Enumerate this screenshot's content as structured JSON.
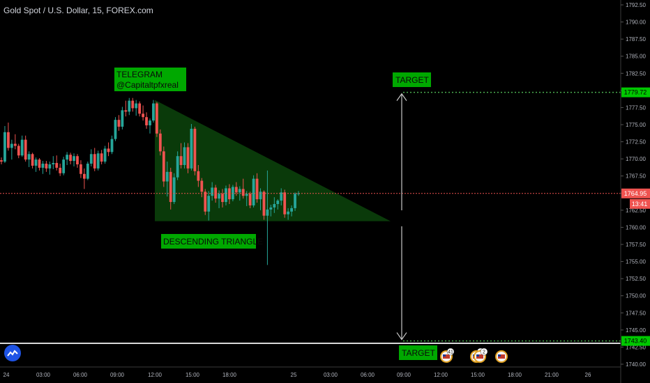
{
  "header": {
    "title": "Gold Spot / U.S. Dollar, 15, FOREX.com"
  },
  "annotations": {
    "telegram_line1": "TELEGRAM",
    "telegram_line2": "@Capitaltpfxreal",
    "pattern_label": "DESCENDING TRIANGLE",
    "target_upper": "TARGET",
    "target_lower": "TARGET"
  },
  "price_tags": {
    "target_upper": "1779.72",
    "current": "1764.95",
    "countdown": "13:41",
    "target_lower": "1743.40"
  },
  "events": [
    {
      "count": "41",
      "flag": "us-flag-icon"
    },
    {
      "count": "2",
      "flag": "us-flag-icon"
    },
    {
      "count": "2",
      "flag": "us-flag-icon"
    },
    {
      "count": "",
      "flag": "us-flag-icon"
    }
  ],
  "colors": {
    "background": "#000000",
    "up": "#26a69a",
    "down": "#ef5350",
    "triangle_fill": "#0b3d0b",
    "label_bg": "#00a800",
    "target_line": "#4caf50",
    "price_line": "#ef5350",
    "axis_text": "#b2b5be"
  },
  "chart_data": {
    "type": "candlestick",
    "symbol": "Gold Spot / U.S. Dollar",
    "interval": "15",
    "source": "FOREX.com",
    "y_ticks": [
      1792.5,
      1790.0,
      1787.5,
      1785.0,
      1782.5,
      1780.0,
      1777.5,
      1775.0,
      1772.5,
      1770.0,
      1767.5,
      1765.0,
      1762.5,
      1760.0,
      1757.5,
      1755.0,
      1752.5,
      1750.0,
      1747.5,
      1745.0,
      1742.5,
      1740.0
    ],
    "y_tick_labels": [
      "1792.50",
      "1790.00",
      "1787.50",
      "1785.00",
      "1782.50",
      "1780.00",
      "1777.50",
      "1775.00",
      "1772.50",
      "1770.00",
      "1767.50",
      "1765.00",
      "1762.50",
      "1760.00",
      "1757.50",
      "1755.00",
      "1752.50",
      "1750.00",
      "1747.50",
      "1745.00",
      "1742.50",
      "1740.00"
    ],
    "ylim": [
      1739.5,
      1793.0
    ],
    "x_labels": [
      "24",
      "03:00",
      "06:00",
      "09:00",
      "12:00",
      "15:00",
      "18:00",
      "25",
      "03:00",
      "06:00",
      "09:00",
      "12:00",
      "15:00",
      "18:00",
      "21:00",
      "26"
    ],
    "current_price": 1764.95,
    "target_upper": 1779.72,
    "target_lower": 1743.4,
    "triangle": {
      "top": 1778.6,
      "base": 1760.9
    },
    "ohlc": [
      [
        1769.8,
        1770.2,
        1769.2,
        1769.6
      ],
      [
        1769.6,
        1774.8,
        1769.4,
        1773.9
      ],
      [
        1773.9,
        1775.3,
        1771.2,
        1771.6
      ],
      [
        1771.6,
        1772.8,
        1769.9,
        1772.2
      ],
      [
        1772.2,
        1773.6,
        1771.4,
        1771.9
      ],
      [
        1771.9,
        1772.2,
        1770.1,
        1770.5
      ],
      [
        1770.5,
        1773.4,
        1770.3,
        1772.8
      ],
      [
        1772.8,
        1773.4,
        1769.6,
        1769.9
      ],
      [
        1769.9,
        1771.1,
        1768.8,
        1770.7
      ],
      [
        1770.7,
        1770.9,
        1768.6,
        1769.0
      ],
      [
        1769.0,
        1770.2,
        1768.1,
        1769.9
      ],
      [
        1769.9,
        1770.1,
        1768.3,
        1768.7
      ],
      [
        1768.7,
        1769.7,
        1767.8,
        1769.3
      ],
      [
        1769.3,
        1769.7,
        1768.1,
        1768.6
      ],
      [
        1768.6,
        1769.6,
        1767.7,
        1769.2
      ],
      [
        1769.2,
        1770.4,
        1768.5,
        1769.4
      ],
      [
        1769.4,
        1770.5,
        1768.3,
        1768.7
      ],
      [
        1768.7,
        1769.3,
        1767.5,
        1767.9
      ],
      [
        1767.9,
        1770.3,
        1767.6,
        1769.9
      ],
      [
        1769.9,
        1771.0,
        1769.1,
        1770.6
      ],
      [
        1770.6,
        1770.9,
        1769.2,
        1769.7
      ],
      [
        1769.7,
        1770.8,
        1768.9,
        1770.4
      ],
      [
        1770.4,
        1770.7,
        1768.7,
        1769.2
      ],
      [
        1769.2,
        1769.8,
        1767.2,
        1767.8
      ],
      [
        1767.8,
        1768.6,
        1765.6,
        1767.1
      ],
      [
        1767.1,
        1769.6,
        1766.9,
        1769.3
      ],
      [
        1769.3,
        1771.4,
        1768.9,
        1770.7
      ],
      [
        1770.7,
        1771.6,
        1768.2,
        1768.6
      ],
      [
        1768.6,
        1771.2,
        1768.3,
        1770.8
      ],
      [
        1770.8,
        1771.3,
        1769.2,
        1769.6
      ],
      [
        1769.6,
        1771.9,
        1769.3,
        1771.5
      ],
      [
        1771.5,
        1772.4,
        1770.4,
        1771.0
      ],
      [
        1771.0,
        1773.4,
        1770.7,
        1772.9
      ],
      [
        1772.9,
        1776.1,
        1772.6,
        1775.7
      ],
      [
        1775.7,
        1776.4,
        1774.1,
        1774.7
      ],
      [
        1774.7,
        1777.6,
        1774.3,
        1777.1
      ],
      [
        1777.1,
        1778.5,
        1776.2,
        1776.9
      ],
      [
        1776.9,
        1778.9,
        1776.4,
        1778.5
      ],
      [
        1778.5,
        1778.9,
        1776.9,
        1777.4
      ],
      [
        1777.4,
        1778.6,
        1776.3,
        1778.1
      ],
      [
        1778.1,
        1778.4,
        1776.2,
        1776.6
      ],
      [
        1776.6,
        1777.8,
        1775.6,
        1776.1
      ],
      [
        1776.1,
        1776.8,
        1774.4,
        1774.9
      ],
      [
        1774.9,
        1775.9,
        1773.7,
        1775.6
      ],
      [
        1775.6,
        1778.6,
        1775.3,
        1778.1
      ],
      [
        1778.1,
        1778.3,
        1773.2,
        1773.7
      ],
      [
        1773.7,
        1774.3,
        1770.5,
        1771.1
      ],
      [
        1771.1,
        1771.8,
        1765.9,
        1766.7
      ],
      [
        1766.7,
        1769.6,
        1764.5,
        1768.1
      ],
      [
        1768.1,
        1768.7,
        1762.6,
        1763.7
      ],
      [
        1763.7,
        1767.9,
        1763.4,
        1767.3
      ],
      [
        1767.3,
        1771.1,
        1766.9,
        1770.4
      ],
      [
        1770.4,
        1772.3,
        1768.6,
        1769.1
      ],
      [
        1769.1,
        1772.4,
        1768.6,
        1771.7
      ],
      [
        1771.7,
        1772.3,
        1767.9,
        1768.6
      ],
      [
        1768.6,
        1775.1,
        1768.3,
        1774.4
      ],
      [
        1774.4,
        1774.7,
        1767.6,
        1768.2
      ],
      [
        1768.2,
        1769.1,
        1765.9,
        1766.8
      ],
      [
        1766.8,
        1767.2,
        1764.4,
        1765.2
      ],
      [
        1765.2,
        1765.6,
        1761.8,
        1762.3
      ],
      [
        1762.3,
        1765.3,
        1761.0,
        1764.6
      ],
      [
        1764.6,
        1766.6,
        1763.9,
        1765.8
      ],
      [
        1765.8,
        1766.2,
        1763.6,
        1764.2
      ],
      [
        1764.2,
        1765.4,
        1762.8,
        1764.9
      ],
      [
        1764.9,
        1765.6,
        1762.9,
        1763.7
      ],
      [
        1763.7,
        1766.1,
        1763.2,
        1765.7
      ],
      [
        1765.7,
        1766.3,
        1763.4,
        1764.1
      ],
      [
        1764.1,
        1766.2,
        1763.8,
        1765.9
      ],
      [
        1765.9,
        1766.6,
        1764.6,
        1765.1
      ],
      [
        1765.1,
        1766.0,
        1763.9,
        1765.6
      ],
      [
        1765.6,
        1767.1,
        1764.2,
        1764.6
      ],
      [
        1764.6,
        1765.3,
        1763.1,
        1764.9
      ],
      [
        1764.9,
        1765.2,
        1762.8,
        1763.2
      ],
      [
        1763.2,
        1767.6,
        1762.9,
        1767.1
      ],
      [
        1767.1,
        1767.9,
        1763.6,
        1764.1
      ],
      [
        1764.1,
        1765.7,
        1762.5,
        1765.2
      ],
      [
        1765.2,
        1765.4,
        1761.1,
        1761.7
      ],
      [
        1761.7,
        1768.3,
        1754.5,
        1762.6
      ],
      [
        1762.6,
        1763.3,
        1761.6,
        1762.9
      ],
      [
        1762.9,
        1764.4,
        1762.1,
        1763.4
      ],
      [
        1763.4,
        1764.1,
        1762.6,
        1763.9
      ],
      [
        1763.9,
        1765.7,
        1763.2,
        1765.1
      ],
      [
        1765.1,
        1765.5,
        1761.4,
        1761.9
      ],
      [
        1761.9,
        1762.8,
        1761.1,
        1762.3
      ],
      [
        1762.3,
        1763.2,
        1761.6,
        1762.8
      ],
      [
        1762.8,
        1765.1,
        1762.4,
        1764.9
      ],
      [
        1764.9,
        1765.3,
        1764.6,
        1764.95
      ]
    ]
  }
}
